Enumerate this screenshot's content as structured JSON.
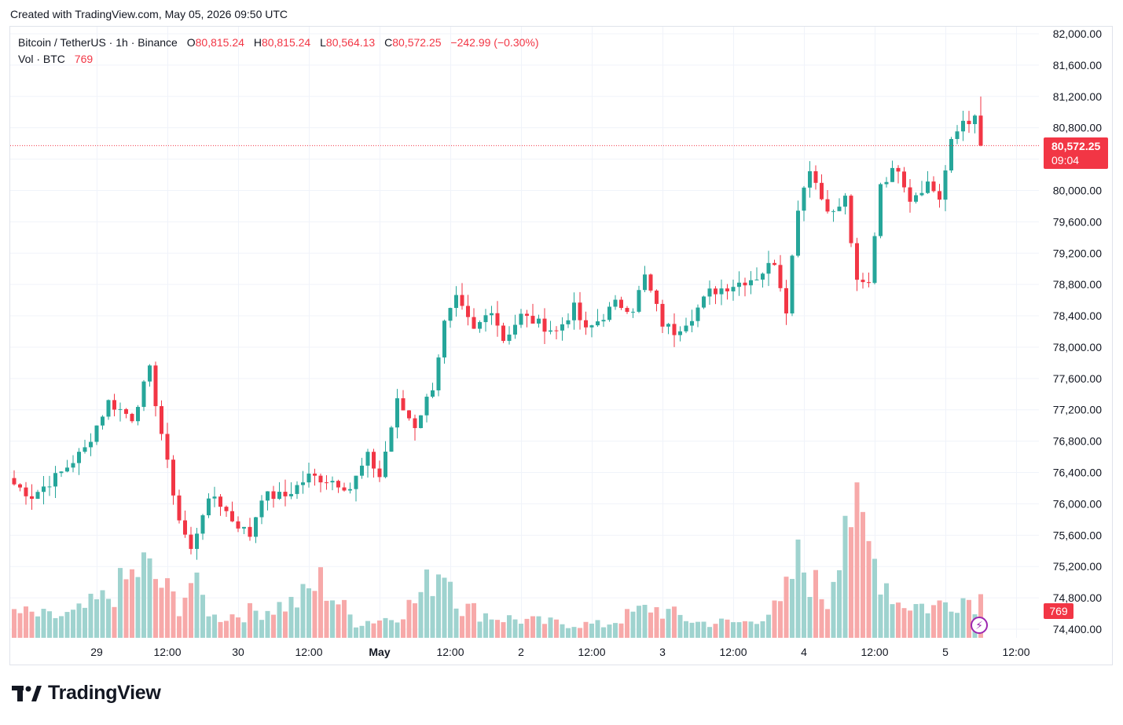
{
  "caption": "Created with TradingView.com, May 05, 2026 09:50 UTC",
  "legend": {
    "symbol": "Bitcoin / TetherUS · 1h · Binance",
    "o_label": "O",
    "o_value": "80,815.24",
    "h_label": "H",
    "h_value": "80,815.24",
    "l_label": "L",
    "l_value": "80,564.13",
    "c_label": "C",
    "c_value": "80,572.25",
    "change": "−242.99 (−0.30%)",
    "vol_label": "Vol · BTC",
    "vol_value": "769"
  },
  "price_tag": {
    "price": "80,572.25",
    "countdown": "09:04"
  },
  "volume_tag": "769",
  "brand": "TradingView",
  "colors": {
    "up": "#26a69a",
    "down": "#f23645",
    "up_volume": "#9fd3cf",
    "down_volume": "#f7a9a9",
    "grid": "#f0f3fa"
  },
  "chart_data": {
    "type": "candlestick",
    "interval": "1h",
    "ylim": [
      74400,
      82000
    ],
    "y_ticks": [
      "82,000.00",
      "81,600.00",
      "81,200.00",
      "80,800.00",
      "80,400.00",
      "80,000.00",
      "79,600.00",
      "79,200.00",
      "78,800.00",
      "78,400.00",
      "78,000.00",
      "77,600.00",
      "77,200.00",
      "76,800.00",
      "76,400.00",
      "76,000.00",
      "75,600.00",
      "75,200.00",
      "74,800.00",
      "74,400.00"
    ],
    "x_ticks": [
      {
        "label": "29",
        "bar": 14
      },
      {
        "label": "12:00",
        "bar": 26
      },
      {
        "label": "30",
        "bar": 38
      },
      {
        "label": "12:00",
        "bar": 50
      },
      {
        "label": "May",
        "bar": 62,
        "bold": true
      },
      {
        "label": "12:00",
        "bar": 74
      },
      {
        "label": "2",
        "bar": 86
      },
      {
        "label": "12:00",
        "bar": 98
      },
      {
        "label": "3",
        "bar": 110
      },
      {
        "label": "12:00",
        "bar": 122
      },
      {
        "label": "4",
        "bar": 134
      },
      {
        "label": "12:00",
        "bar": 146
      },
      {
        "label": "5",
        "bar": 158
      },
      {
        "label": "12:00",
        "bar": 170
      }
    ],
    "last_price": 80572.25,
    "key_points": [
      [
        0,
        76250
      ],
      [
        3,
        76100
      ],
      [
        8,
        76400
      ],
      [
        12,
        76700
      ],
      [
        16,
        77300
      ],
      [
        20,
        77100
      ],
      [
        23,
        77700
      ],
      [
        26,
        76500
      ],
      [
        28,
        75800
      ],
      [
        30,
        75400
      ],
      [
        32,
        75900
      ],
      [
        34,
        76100
      ],
      [
        37,
        75800
      ],
      [
        40,
        75600
      ],
      [
        42,
        76100
      ],
      [
        46,
        76100
      ],
      [
        50,
        76350
      ],
      [
        54,
        76300
      ],
      [
        57,
        76200
      ],
      [
        60,
        76600
      ],
      [
        62,
        76350
      ],
      [
        65,
        77300
      ],
      [
        68,
        77000
      ],
      [
        71,
        77500
      ],
      [
        73,
        78300
      ],
      [
        75,
        78600
      ],
      [
        78,
        78200
      ],
      [
        81,
        78500
      ],
      [
        83,
        78100
      ],
      [
        86,
        78400
      ],
      [
        89,
        78300
      ],
      [
        92,
        78200
      ],
      [
        95,
        78500
      ],
      [
        97,
        78200
      ],
      [
        100,
        78400
      ],
      [
        102,
        78550
      ],
      [
        105,
        78500
      ],
      [
        107,
        78900
      ],
      [
        110,
        78300
      ],
      [
        112,
        78200
      ],
      [
        115,
        78400
      ],
      [
        118,
        78700
      ],
      [
        122,
        78800
      ],
      [
        126,
        78900
      ],
      [
        129,
        79100
      ],
      [
        131,
        78500
      ],
      [
        133,
        79800
      ],
      [
        135,
        80300
      ],
      [
        137,
        79900
      ],
      [
        139,
        79700
      ],
      [
        141,
        79900
      ],
      [
        143,
        78800
      ],
      [
        145,
        78800
      ],
      [
        147,
        80100
      ],
      [
        150,
        80300
      ],
      [
        152,
        79900
      ],
      [
        155,
        80100
      ],
      [
        157,
        79900
      ],
      [
        159,
        80600
      ],
      [
        161,
        80900
      ],
      [
        163,
        80900
      ],
      [
        164,
        80572.25
      ]
    ],
    "volume_range": [
      0,
      2700
    ],
    "volume_profile": [
      [
        0,
        500
      ],
      [
        6,
        400
      ],
      [
        10,
        450
      ],
      [
        16,
        800
      ],
      [
        22,
        1400
      ],
      [
        28,
        650
      ],
      [
        30,
        1100
      ],
      [
        34,
        400
      ],
      [
        40,
        500
      ],
      [
        48,
        700
      ],
      [
        52,
        1100
      ],
      [
        58,
        300
      ],
      [
        64,
        400
      ],
      [
        68,
        700
      ],
      [
        73,
        1500
      ],
      [
        76,
        600
      ],
      [
        82,
        400
      ],
      [
        90,
        300
      ],
      [
        100,
        250
      ],
      [
        108,
        600
      ],
      [
        116,
        300
      ],
      [
        124,
        300
      ],
      [
        130,
        600
      ],
      [
        133,
        1500
      ],
      [
        138,
        700
      ],
      [
        141,
        2700
      ],
      [
        146,
        1500
      ],
      [
        150,
        700
      ],
      [
        156,
        600
      ],
      [
        160,
        800
      ],
      [
        163,
        750
      ],
      [
        164,
        769
      ]
    ]
  }
}
